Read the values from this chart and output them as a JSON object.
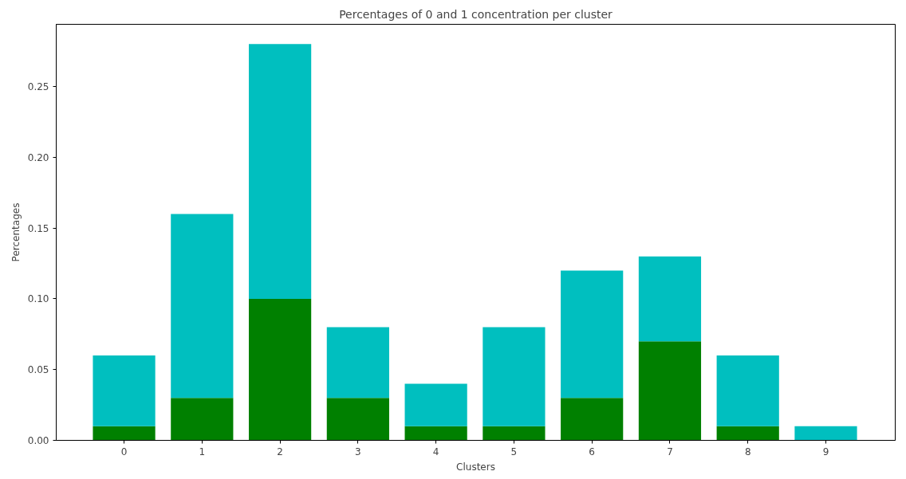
{
  "chart_data": {
    "type": "bar",
    "title": "Percentages of 0 and 1 concentration per cluster",
    "xlabel": "Clusters",
    "ylabel": "Percentages",
    "categories": [
      "0",
      "1",
      "2",
      "3",
      "4",
      "5",
      "6",
      "7",
      "8",
      "9"
    ],
    "stacked": true,
    "series": [
      {
        "color": "#008000",
        "values": [
          0.01,
          0.03,
          0.1,
          0.03,
          0.01,
          0.01,
          0.03,
          0.07,
          0.01,
          0
        ]
      },
      {
        "color": "#00bfbf",
        "values": [
          0.05,
          0.13,
          0.18,
          0.05,
          0.03,
          0.07,
          0.09,
          0.06,
          0.05,
          0.01
        ]
      }
    ],
    "ylim": [
      0,
      0.294
    ],
    "yticks": [
      {
        "value": 0,
        "label": "0.00"
      },
      0.05,
      {
        "value": 0.1,
        "label": "0.10"
      },
      0.15,
      {
        "value": 0.2,
        "label": "0.20"
      },
      0.25
    ],
    "grid": false
  }
}
